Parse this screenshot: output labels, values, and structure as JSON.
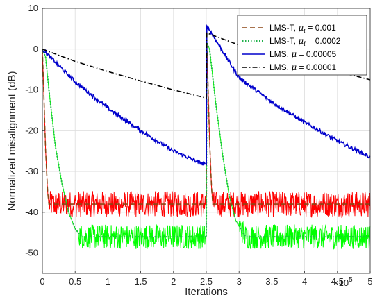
{
  "chart_data": {
    "type": "line",
    "title": "",
    "xlabel": "Iterations",
    "ylabel": "Normalized misalignment (dB)",
    "x_multiplier": "×10",
    "x_multiplier_exp": "5",
    "xlim": [
      0,
      5
    ],
    "ylim": [
      -55,
      10
    ],
    "xticks": [
      "0",
      "0.5",
      "1",
      "1.5",
      "2",
      "2.5",
      "3",
      "3.5",
      "4",
      "4.5",
      "5"
    ],
    "yticks": [
      "10",
      "0",
      "-10",
      "-20",
      "-30",
      "-40",
      "-50"
    ],
    "grid": true,
    "legend_position": "top-right",
    "series": [
      {
        "name": "LMS-T, μ_i = 0.001",
        "label_prefix": "LMS-T, ",
        "label_mu": "μ",
        "label_sub": "i",
        "label_suffix": " = 0.001",
        "color": "#8B4513",
        "noise_color": "#ff0000",
        "style": "dashed",
        "x": [
          0,
          0.02,
          0.05,
          0.08,
          0.1,
          2.5,
          2.5,
          2.52,
          2.55,
          2.58,
          2.6,
          5.0
        ],
        "y": [
          0,
          -10,
          -25,
          -35,
          -38,
          -38,
          6,
          -5,
          -22,
          -34,
          -38,
          -38
        ]
      },
      {
        "name": "LMS-T, μ_i = 0.0002",
        "label_prefix": "LMS-T, ",
        "label_mu": "μ",
        "label_sub": "i",
        "label_suffix": " = 0.0002",
        "color": "#22b14c",
        "noise_color": "#00ff00",
        "style": "dotted",
        "x": [
          0,
          0.05,
          0.1,
          0.2,
          0.3,
          0.4,
          0.5,
          0.6,
          2.5,
          2.5,
          2.55,
          2.65,
          2.75,
          2.85,
          2.95,
          3.1,
          5.0
        ],
        "y": [
          0,
          -2,
          -10,
          -24,
          -33,
          -40,
          -44,
          -46,
          -46,
          2,
          0,
          -14,
          -26,
          -36,
          -42,
          -46,
          -46
        ]
      },
      {
        "name": "LMS, μ = 0.00005",
        "label_prefix": "LMS, ",
        "label_mu": "μ",
        "label_sub": "",
        "label_suffix": " = 0.00005",
        "color": "#0000cc",
        "noise_color": "#0000cc",
        "style": "solid",
        "x": [
          0,
          0.5,
          1.0,
          1.5,
          2.0,
          2.5,
          2.5,
          3.0,
          3.5,
          4.0,
          4.5,
          5.0
        ],
        "y": [
          0,
          -8,
          -14.5,
          -20,
          -25,
          -28.5,
          6,
          -7,
          -13,
          -18,
          -22.5,
          -26.5
        ]
      },
      {
        "name": "LMS, μ = 0.00001",
        "label_prefix": "LMS, ",
        "label_mu": "μ",
        "label_sub": "",
        "label_suffix": " = 0.00001",
        "color": "#000000",
        "noise_color": "#000000",
        "style": "dashdot",
        "x": [
          0,
          0.5,
          1.0,
          1.5,
          2.0,
          2.5,
          2.5,
          3.0,
          3.5,
          4.0,
          4.5,
          5.0
        ],
        "y": [
          0,
          -3,
          -5.5,
          -7.8,
          -10,
          -12,
          4,
          1,
          -1.5,
          -3.5,
          -5.5,
          -7.5
        ]
      }
    ]
  }
}
